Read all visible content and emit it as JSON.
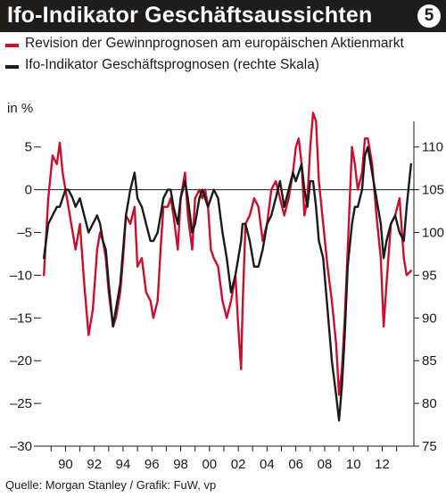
{
  "header": {
    "title": "Ifo-Indikator Geschäftsaussichten",
    "badge": "5"
  },
  "legend": [
    {
      "label": "Revision der Gewinnprognosen am europäischen Aktienmarkt",
      "color": "#c8102e"
    },
    {
      "label": "Ifo-Indikator Geschäftsprognosen (rechte Skala)",
      "color": "#1a1a1a"
    }
  ],
  "footer": {
    "source": "Quelle: Morgan Stanley / Grafik: FuW, vp"
  },
  "chart_data": {
    "type": "line",
    "left_axis_label": "in %",
    "xlim": [
      1988.3,
      2014.2
    ],
    "x_ticks": [
      1990,
      1992,
      1994,
      1996,
      1998,
      2000,
      2002,
      2004,
      2006,
      2008,
      2010,
      2012
    ],
    "x_tick_labels": [
      "90",
      "92",
      "94",
      "96",
      "98",
      "00",
      "02",
      "04",
      "06",
      "08",
      "10",
      "12"
    ],
    "left_ylim": [
      -30,
      8
    ],
    "left_ticks": [
      5,
      0,
      -5,
      -10,
      -15,
      -20,
      -25,
      -30
    ],
    "left_tick_labels": [
      "5",
      "0",
      "–5",
      "–10",
      "–15",
      "–20",
      "–25",
      "–30"
    ],
    "right_ylim": [
      75,
      113
    ],
    "right_ticks": [
      110,
      105,
      100,
      95,
      90,
      85,
      80,
      75
    ],
    "right_tick_labels": [
      "110",
      "105",
      "100",
      "95",
      "90",
      "85",
      "80",
      "75"
    ],
    "zero_line": 0,
    "series": [
      {
        "name": "Revision der Gewinnprognosen am europäischen Aktienmarkt",
        "axis": "left",
        "color": "#c8102e",
        "x": [
          1988.5,
          1988.8,
          1989.1,
          1989.4,
          1989.6,
          1989.8,
          1990.0,
          1990.2,
          1990.5,
          1990.7,
          1991.0,
          1991.3,
          1991.6,
          1991.9,
          1992.2,
          1992.4,
          1992.6,
          1992.8,
          1993.0,
          1993.3,
          1993.5,
          1993.8,
          1994.0,
          1994.2,
          1994.5,
          1994.8,
          1995.0,
          1995.3,
          1995.6,
          1995.9,
          1996.1,
          1996.4,
          1996.6,
          1996.8,
          1997.1,
          1997.3,
          1997.5,
          1997.8,
          1998.0,
          1998.3,
          1998.5,
          1998.8,
          1999.0,
          1999.3,
          1999.5,
          1999.7,
          1999.9,
          2000.1,
          2000.3,
          2000.6,
          2000.9,
          2001.2,
          2001.5,
          2001.8,
          2002.0,
          2002.2,
          2002.3,
          2002.5,
          2002.8,
          2003.1,
          2003.4,
          2003.7,
          2004.0,
          2004.3,
          2004.6,
          2004.9,
          2005.2,
          2005.5,
          2005.8,
          2006.0,
          2006.2,
          2006.4,
          2006.6,
          2006.8,
          2007.0,
          2007.2,
          2007.4,
          2007.6,
          2007.9,
          2008.2,
          2008.5,
          2008.8,
          2009.0,
          2009.2,
          2009.4,
          2009.6,
          2009.9,
          2010.1,
          2010.3,
          2010.6,
          2010.8,
          2011.0,
          2011.3,
          2011.6,
          2011.9,
          2012.1,
          2012.3,
          2012.6,
          2012.9,
          2013.2,
          2013.5,
          2013.7,
          2014.0
        ],
        "y": [
          -10,
          -1,
          4,
          3,
          5.5,
          2,
          0,
          -2,
          -5,
          -7,
          -4,
          -11,
          -17,
          -14,
          -7,
          -5,
          -6,
          -8,
          -12,
          -16,
          -15,
          -12,
          -8,
          -3,
          -4,
          -2,
          -9,
          -8,
          -12,
          -13,
          -15,
          -13,
          -7,
          -2,
          -2,
          -1,
          -3,
          -7,
          -1,
          2,
          -3,
          -7,
          -1,
          0,
          -1,
          0,
          -2,
          -7,
          -8,
          -9,
          -13,
          -15,
          -13,
          -10,
          -16,
          -21,
          -14,
          -4,
          -3,
          -1,
          -2,
          -6,
          -4,
          0,
          1,
          -1,
          -3,
          -1,
          2,
          5,
          6,
          3,
          -3,
          -1,
          5,
          9,
          8,
          1,
          -4,
          -9,
          -13,
          -18,
          -24,
          -21,
          -15,
          -7,
          5,
          3,
          0,
          2,
          6,
          6,
          3,
          -3,
          -8,
          -16,
          -11,
          -4,
          -3,
          -1,
          -8,
          -10,
          -9.5
        ]
      },
      {
        "name": "Ifo-Indikator Geschäftsprognosen (rechte Skala)",
        "axis": "right",
        "color": "#1a1a1a",
        "x": [
          1988.5,
          1988.8,
          1989.1,
          1989.4,
          1989.6,
          1989.8,
          1990.0,
          1990.2,
          1990.5,
          1990.7,
          1991.0,
          1991.3,
          1991.6,
          1991.9,
          1992.2,
          1992.4,
          1992.6,
          1992.8,
          1993.0,
          1993.3,
          1993.5,
          1993.8,
          1994.0,
          1994.2,
          1994.5,
          1994.8,
          1995.0,
          1995.3,
          1995.6,
          1995.9,
          1996.1,
          1996.4,
          1996.6,
          1996.8,
          1997.1,
          1997.3,
          1997.5,
          1997.8,
          1998.0,
          1998.3,
          1998.5,
          1998.8,
          1999.0,
          1999.3,
          1999.5,
          1999.7,
          1999.9,
          2000.1,
          2000.3,
          2000.6,
          2000.9,
          2001.2,
          2001.5,
          2001.8,
          2002.0,
          2002.2,
          2002.3,
          2002.5,
          2002.8,
          2003.1,
          2003.4,
          2003.7,
          2004.0,
          2004.3,
          2004.6,
          2004.9,
          2005.2,
          2005.5,
          2005.8,
          2006.0,
          2006.2,
          2006.4,
          2006.6,
          2006.8,
          2007.0,
          2007.2,
          2007.4,
          2007.6,
          2007.9,
          2008.2,
          2008.5,
          2008.8,
          2009.0,
          2009.2,
          2009.4,
          2009.6,
          2009.9,
          2010.1,
          2010.3,
          2010.6,
          2010.8,
          2011.0,
          2011.3,
          2011.6,
          2011.9,
          2012.1,
          2012.3,
          2012.6,
          2012.9,
          2013.2,
          2013.5,
          2013.7,
          2014.0
        ],
        "y": [
          97,
          101,
          102,
          103,
          103,
          104,
          105,
          105,
          104,
          103,
          104,
          102,
          100,
          101,
          102,
          101,
          99,
          98,
          94,
          89,
          91,
          94,
          98,
          102,
          105,
          107,
          104,
          103,
          101,
          99,
          99,
          100,
          102,
          104,
          105,
          105,
          103,
          101,
          104,
          106,
          104,
          100,
          101,
          104,
          105,
          104,
          103,
          104,
          105,
          104,
          100,
          97,
          93,
          95,
          97,
          99,
          101,
          101,
          99,
          96,
          96,
          98,
          101,
          102,
          104,
          106,
          103,
          105,
          107,
          106,
          107,
          108,
          105,
          103,
          106,
          106,
          103,
          99,
          97,
          91,
          85,
          81,
          78,
          82,
          88,
          96,
          101,
          103,
          103,
          105,
          109,
          110,
          107,
          104,
          101,
          97,
          99,
          101,
          102,
          100,
          99,
          103,
          108
        ]
      }
    ]
  }
}
